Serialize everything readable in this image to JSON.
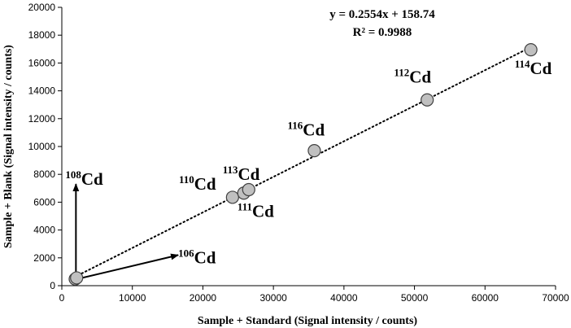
{
  "chart_data": {
    "type": "scatter",
    "title": "",
    "xlabel": "Sample + Standard (Signal intensity / counts)",
    "ylabel": "Sample + Blank (Signal intensity / counts)",
    "xlim": [
      0,
      70000
    ],
    "ylim": [
      0,
      20000
    ],
    "x_ticks": [
      "0",
      "10000",
      "20000",
      "30000",
      "40000",
      "50000",
      "60000",
      "70000"
    ],
    "y_ticks": [
      "0",
      "2000",
      "4000",
      "6000",
      "8000",
      "10000",
      "12000",
      "14000",
      "16000",
      "18000",
      "20000"
    ],
    "grid": false,
    "points": [
      {
        "isotope": "106",
        "x": 1900,
        "y": 480
      },
      {
        "isotope": "108",
        "x": 2100,
        "y": 560
      },
      {
        "isotope": "110",
        "x": 24200,
        "y": 6350
      },
      {
        "isotope": "111",
        "x": 25800,
        "y": 6650
      },
      {
        "isotope": "113",
        "x": 26500,
        "y": 6900
      },
      {
        "isotope": "116",
        "x": 35800,
        "y": 9700
      },
      {
        "isotope": "112",
        "x": 51800,
        "y": 13350
      },
      {
        "isotope": "114",
        "x": 66500,
        "y": 16950
      }
    ],
    "point_labels": [
      {
        "mass": "106",
        "symbol": "Cd",
        "at_x": 16500,
        "at_y": 1600
      },
      {
        "mass": "108",
        "symbol": "Cd",
        "at_x": 500,
        "at_y": 7250
      },
      {
        "mass": "110",
        "symbol": "Cd",
        "at_x": 16600,
        "at_y": 6900
      },
      {
        "mass": "111",
        "symbol": "Cd",
        "at_x": 24900,
        "at_y": 4950
      },
      {
        "mass": "113",
        "symbol": "Cd",
        "at_x": 22800,
        "at_y": 7600
      },
      {
        "mass": "116",
        "symbol": "Cd",
        "at_x": 32000,
        "at_y": 10800
      },
      {
        "mass": "112",
        "symbol": "Cd",
        "at_x": 47100,
        "at_y": 14600
      },
      {
        "mass": "114",
        "symbol": "Cd",
        "at_x": 64200,
        "at_y": 15200
      }
    ],
    "arrows": [
      {
        "from": [
          2000,
          520
        ],
        "to": [
          2000,
          7300
        ]
      },
      {
        "from": [
          2700,
          540
        ],
        "to": [
          16500,
          2200
        ]
      }
    ],
    "trendline": {
      "type": "linear",
      "style": "dotted",
      "x_range": [
        1800,
        66600
      ],
      "slope": 0.2554,
      "intercept": 158.74
    },
    "equation": "y = 0.2554x + 158.74",
    "r_squared": "R² = 0.9988",
    "colors": {
      "marker_fill": "#c0c0c0",
      "marker_stroke": "#404040",
      "line": "#000000"
    }
  }
}
